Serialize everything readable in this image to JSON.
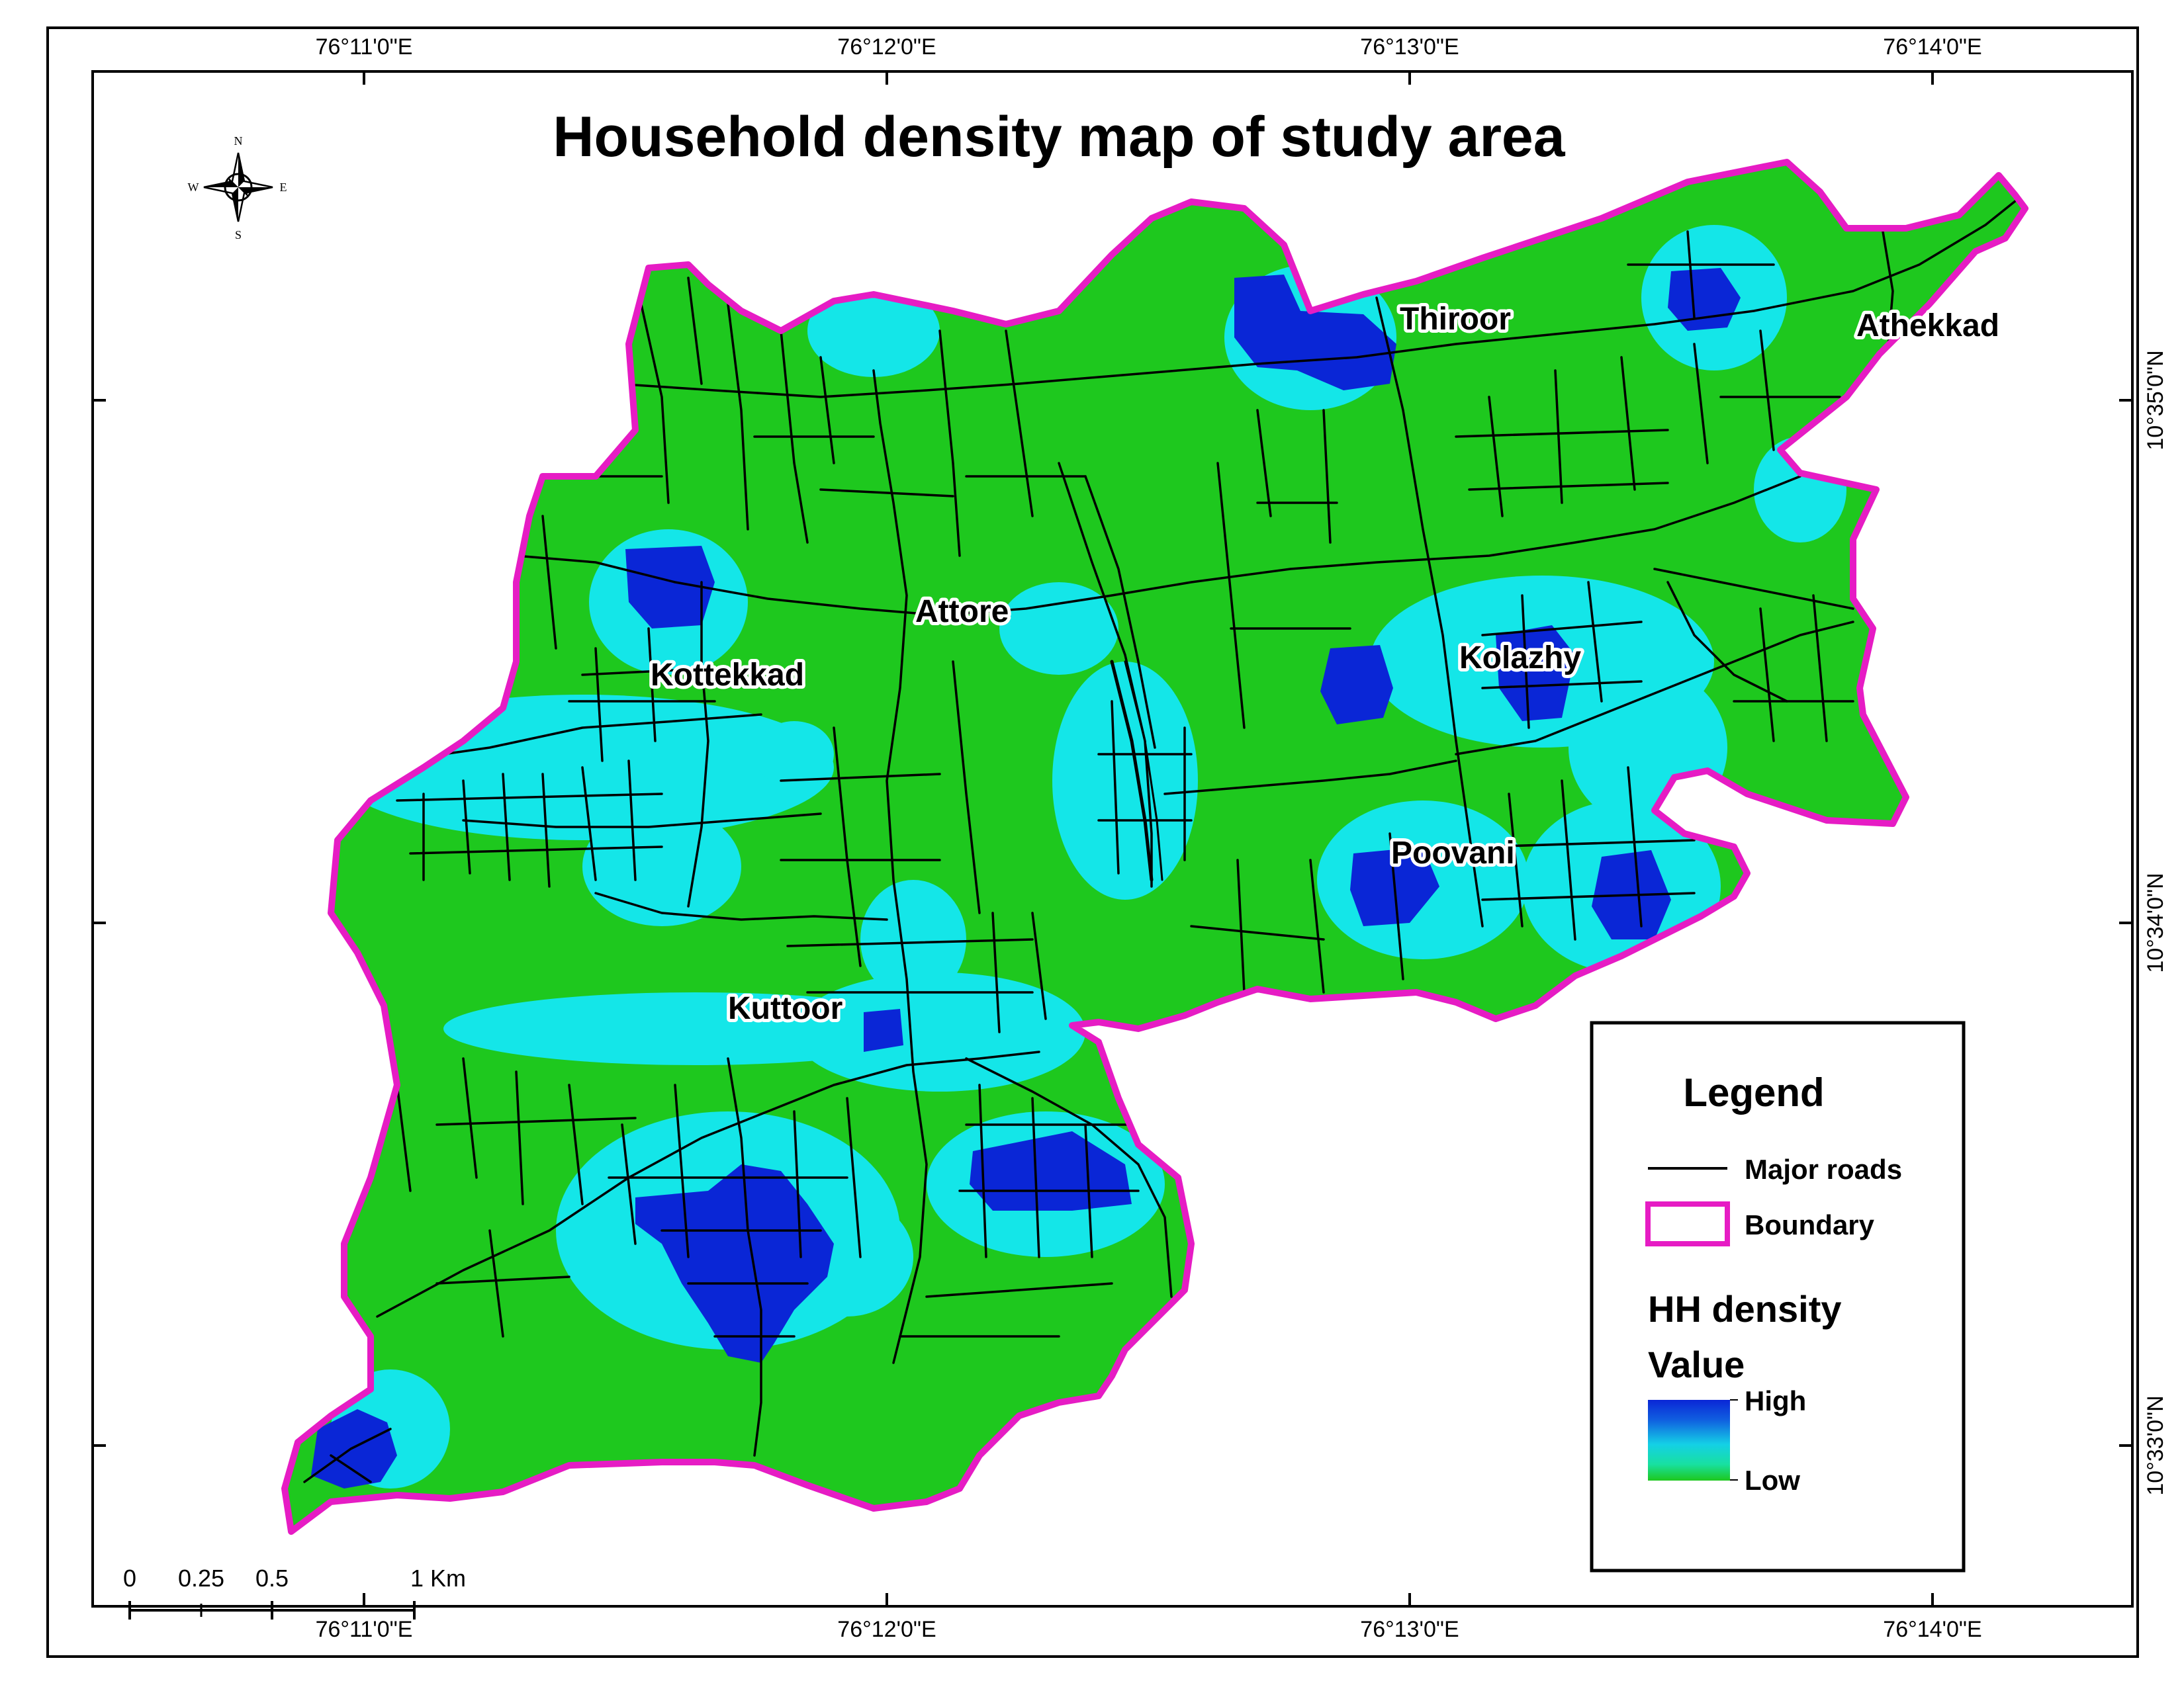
{
  "map": {
    "title": "Household density map of study area",
    "colors": {
      "background": "#1ec81e",
      "medium": "#14e6e8",
      "high": "#0a26d6",
      "boundary": "#e61cc4",
      "roads": "#000000"
    }
  },
  "grid": {
    "top_labels": [
      "76°11'0\"E",
      "76°12'0\"E",
      "76°13'0\"E",
      "76°14'0\"E"
    ],
    "bottom_labels": [
      "76°11'0\"E",
      "76°12'0\"E",
      "76°13'0\"E",
      "76°14'0\"E"
    ],
    "right_labels": [
      "10°35'0\"N",
      "10°34'0\"N",
      "10°33'0\"N"
    ]
  },
  "places": [
    {
      "id": "thiroor",
      "name": "Thiroor"
    },
    {
      "id": "athekkad",
      "name": "Athekkad"
    },
    {
      "id": "attore",
      "name": "Attore"
    },
    {
      "id": "kottekkad",
      "name": "Kottekkad"
    },
    {
      "id": "kolazhy",
      "name": "Kolazhy"
    },
    {
      "id": "poovani",
      "name": "Poovani"
    },
    {
      "id": "kuttoor",
      "name": "Kuttoor"
    }
  ],
  "compass": {
    "icon": "north-arrow-icon",
    "n": "N",
    "s": "S",
    "e": "E",
    "w": "W"
  },
  "scale_bar": {
    "labels": [
      "0",
      "0.25",
      "0.5",
      "1 Km"
    ]
  },
  "legend": {
    "title": "Legend",
    "roads_label": "Major roads",
    "boundary_label": "Boundary",
    "density_title": "HH density",
    "value_label": "Value",
    "high_label": "High",
    "low_label": "Low"
  }
}
